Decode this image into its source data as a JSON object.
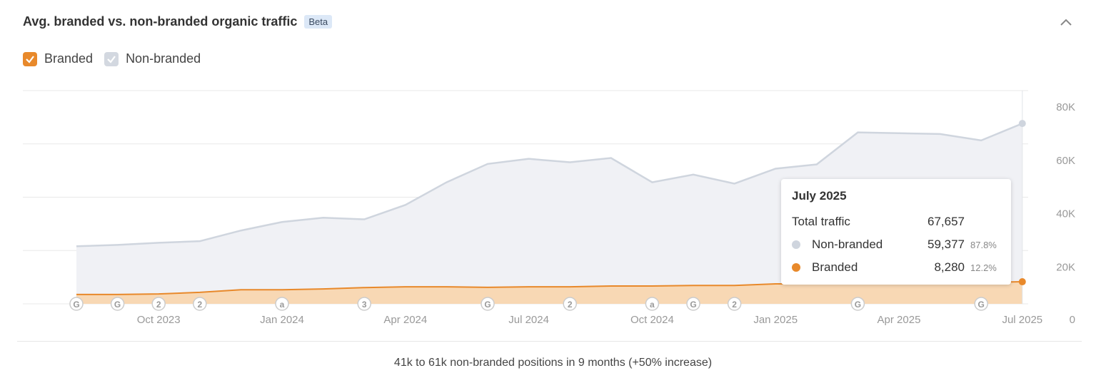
{
  "header": {
    "title": "Avg. branded vs. non-branded organic traffic",
    "badge": "Beta"
  },
  "legend": [
    {
      "label": "Branded",
      "checked": true,
      "color": "#e8892b"
    },
    {
      "label": "Non-branded",
      "checked": true,
      "color": "#cfd5de"
    }
  ],
  "tooltip": {
    "title": "July 2025",
    "total_label": "Total traffic",
    "total_value": "67,657",
    "rows": [
      {
        "label": "Non-branded",
        "value": "59,377",
        "pct": "87.8%",
        "color": "#cfd5de"
      },
      {
        "label": "Branded",
        "value": "8,280",
        "pct": "12.2%",
        "color": "#e8892b"
      }
    ]
  },
  "caption": "41k to 61k non-branded positions in 9 months (+50% increase)",
  "chart_data": {
    "type": "area",
    "stacked": true,
    "x": [
      "Aug 2023",
      "Sep 2023",
      "Oct 2023",
      "Nov 2023",
      "Dec 2023",
      "Jan 2024",
      "Feb 2024",
      "Mar 2024",
      "Apr 2024",
      "May 2024",
      "Jun 2024",
      "Jul 2024",
      "Aug 2024",
      "Sep 2024",
      "Oct 2024",
      "Nov 2024",
      "Dec 2024",
      "Jan 2025",
      "Feb 2025",
      "Mar 2025",
      "Apr 2025",
      "May 2025",
      "Jun 2025",
      "Jul 2025"
    ],
    "x_ticks": [
      "Oct 2023",
      "Jan 2024",
      "Apr 2024",
      "Jul 2024",
      "Oct 2024",
      "Jan 2025",
      "Apr 2025",
      "Jul 2025"
    ],
    "y_ticks": [
      "0",
      "20K",
      "40K",
      "60K",
      "80K"
    ],
    "ylim": [
      0,
      80000
    ],
    "grid": true,
    "series": [
      {
        "name": "Branded",
        "color": "#e8892b",
        "values": [
          3500,
          3500,
          3700,
          4300,
          5300,
          5300,
          5600,
          6100,
          6400,
          6400,
          6200,
          6400,
          6400,
          6700,
          6700,
          6900,
          6900,
          7500,
          7500,
          7700,
          7800,
          7900,
          8000,
          8280
        ]
      },
      {
        "name": "Non-branded",
        "color": "#cfd5de",
        "values": [
          18100,
          18600,
          19200,
          19200,
          22200,
          25400,
          26700,
          25600,
          30700,
          39200,
          46300,
          48000,
          46700,
          48000,
          38900,
          41600,
          38200,
          43200,
          44800,
          56600,
          56200,
          55800,
          53300,
          59377
        ]
      }
    ],
    "annotations": [
      {
        "x": "Aug 2023",
        "label": "G"
      },
      {
        "x": "Sep 2023",
        "label": "G"
      },
      {
        "x": "Oct 2023",
        "label": "2"
      },
      {
        "x": "Nov 2023",
        "label": "2"
      },
      {
        "x": "Jan 2024",
        "label": "a"
      },
      {
        "x": "Mar 2024",
        "label": "3"
      },
      {
        "x": "Jun 2024",
        "label": "G"
      },
      {
        "x": "Aug 2024",
        "label": "2"
      },
      {
        "x": "Oct 2024",
        "label": "a"
      },
      {
        "x": "Nov 2024",
        "label": "G"
      },
      {
        "x": "Dec 2024",
        "label": "2"
      },
      {
        "x": "Mar 2025",
        "label": "G"
      },
      {
        "x": "Jun 2025",
        "label": "G"
      }
    ],
    "highlight": "Jul 2025"
  }
}
